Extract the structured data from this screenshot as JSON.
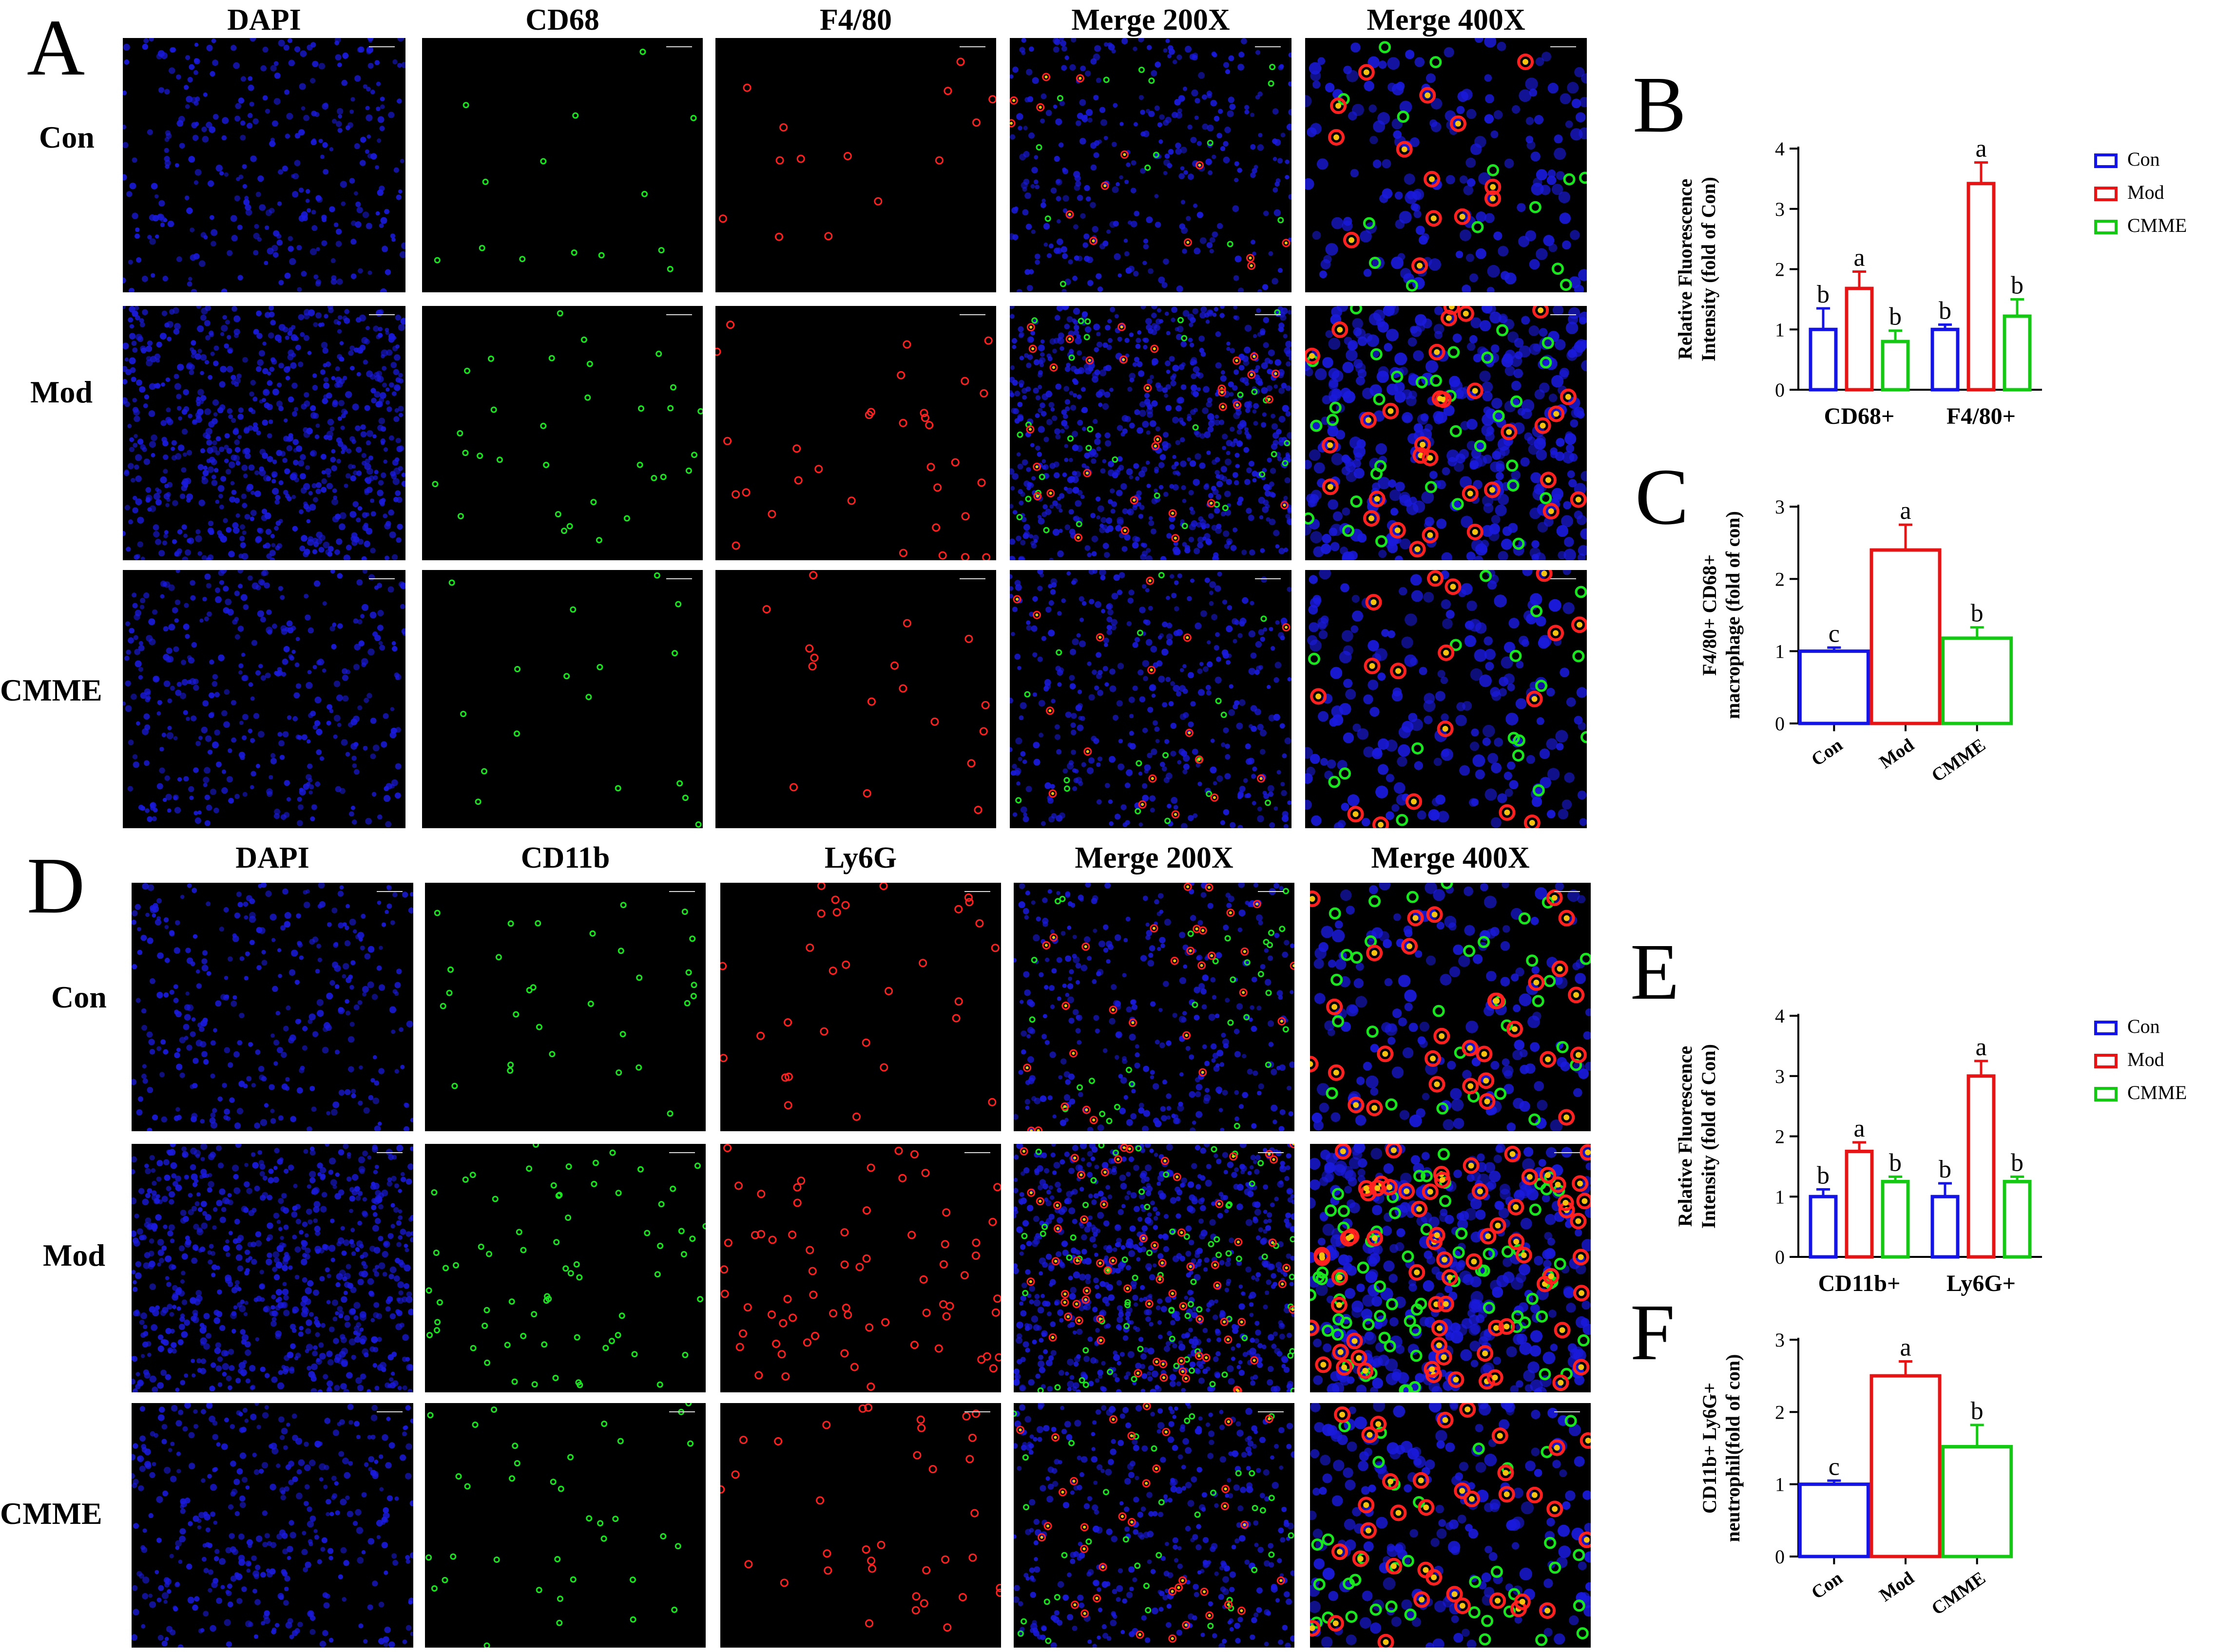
{
  "panels": {
    "A": {
      "letter": "A",
      "columns": [
        "DAPI",
        "CD68",
        "F4/80",
        "Merge 200X",
        "Merge 400X"
      ],
      "rows": [
        "Con",
        "Mod",
        "CMME"
      ]
    },
    "D": {
      "letter": "D",
      "columns": [
        "DAPI",
        "CD11b",
        "Ly6G",
        "Merge 200X",
        "Merge 400X"
      ],
      "rows": [
        "Con",
        "Mod",
        "CMME"
      ]
    }
  },
  "colors": {
    "Con": "#1414e6",
    "Mod": "#e61414",
    "CMME": "#14c814",
    "dapi": "#1a1adc",
    "green": "#19e61e",
    "red": "#ff2020"
  },
  "chart_data": [
    {
      "panel": "B",
      "type": "bar",
      "categories": [
        "CD68+",
        "F4/80+"
      ],
      "series": [
        {
          "name": "Con",
          "values": [
            1.0,
            1.0
          ],
          "errors": [
            0.35,
            0.08
          ],
          "letters": [
            "b",
            "b"
          ]
        },
        {
          "name": "Mod",
          "values": [
            1.68,
            3.42
          ],
          "errors": [
            0.28,
            0.35
          ],
          "letters": [
            "a",
            "a"
          ]
        },
        {
          "name": "CMME",
          "values": [
            0.8,
            1.22
          ],
          "errors": [
            0.18,
            0.28
          ],
          "letters": [
            "b",
            "b"
          ]
        }
      ],
      "ylabel": "Relative Fluorescence\nIntensity (fold of Con)",
      "ylim": [
        0,
        4
      ],
      "yticks": [
        0,
        1,
        2,
        3,
        4
      ],
      "legend": "right"
    },
    {
      "panel": "C",
      "type": "bar",
      "categories": [
        "Con",
        "Mod",
        "CMME"
      ],
      "values": [
        1.0,
        2.4,
        1.18
      ],
      "errors": [
        0.05,
        0.35,
        0.15
      ],
      "letters": [
        "c",
        "a",
        "b"
      ],
      "ylabel": "F4/80+ CD68+\nmacrophage (fold of con)",
      "ylim": [
        0,
        3
      ],
      "yticks": [
        0,
        1,
        2,
        3
      ]
    },
    {
      "panel": "E",
      "type": "bar",
      "categories": [
        "CD11b+",
        "Ly6G+"
      ],
      "series": [
        {
          "name": "Con",
          "values": [
            1.0,
            1.0
          ],
          "errors": [
            0.12,
            0.22
          ],
          "letters": [
            "b",
            "b"
          ]
        },
        {
          "name": "Mod",
          "values": [
            1.75,
            3.0
          ],
          "errors": [
            0.15,
            0.25
          ],
          "letters": [
            "a",
            "a"
          ]
        },
        {
          "name": "CMME",
          "values": [
            1.25,
            1.25
          ],
          "errors": [
            0.08,
            0.08
          ],
          "letters": [
            "b",
            "b"
          ]
        }
      ],
      "ylabel": "Relative Fluorescence\nIntensity (fold of Con)",
      "ylim": [
        0,
        4
      ],
      "yticks": [
        0,
        1,
        2,
        3,
        4
      ],
      "legend": "right"
    },
    {
      "panel": "F",
      "type": "bar",
      "categories": [
        "Con",
        "Mod",
        "CMME"
      ],
      "values": [
        1.0,
        2.5,
        1.52
      ],
      "errors": [
        0.05,
        0.2,
        0.3
      ],
      "letters": [
        "c",
        "a",
        "b"
      ],
      "ylabel": "CD11b+ Ly6G+\nneutrophil(fold of con)",
      "ylim": [
        0,
        3
      ],
      "yticks": [
        0,
        1,
        2,
        3
      ]
    }
  ]
}
